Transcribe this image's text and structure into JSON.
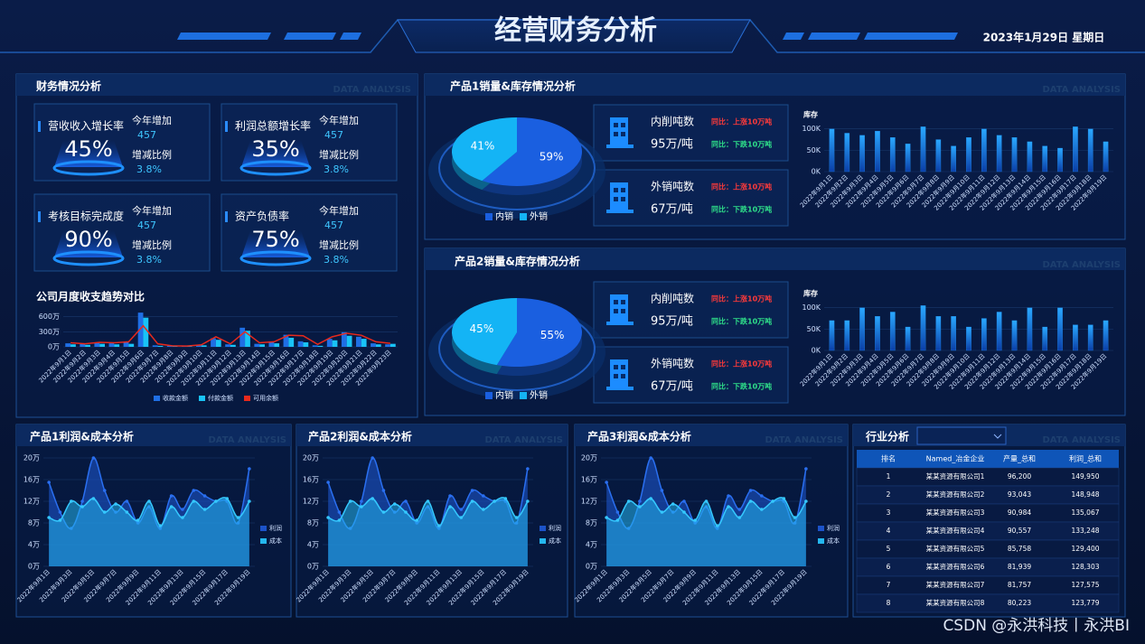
{
  "header": {
    "title": "经营财务分析",
    "date": "2023年1月29日 星期日"
  },
  "watermark": "CSDN @永洪科技丨永洪BI",
  "panel_tag": "DATA ANALYSIS",
  "finance": {
    "title": "财务情况分析"
  },
  "kpis": [
    {
      "label": "营收收入增长率",
      "value": "45%",
      "inc_label": "今年增加",
      "inc": "457",
      "ratio_label": "增减比例",
      "ratio": "3.8%"
    },
    {
      "label": "利润总额增长率",
      "value": "35%",
      "inc_label": "今年增加",
      "inc": "457",
      "ratio_label": "增减比例",
      "ratio": "3.8%"
    },
    {
      "label": "考核目标完成度",
      "value": "90%",
      "inc_label": "今年增加",
      "inc": "457",
      "ratio_label": "增减比例",
      "ratio": "3.8%"
    },
    {
      "label": "资产负债率",
      "value": "75%",
      "inc_label": "今年增加",
      "inc": "457",
      "ratio_label": "增减比例",
      "ratio": "3.8%"
    }
  ],
  "products": [
    {
      "title": "产品1销量&库存情况分析",
      "cards": [
        {
          "name": "内削吨数",
          "value": "95万/吨",
          "up": "同比：上涨10万吨",
          "down": "同比：下跌10万吨"
        },
        {
          "name": "外销吨数",
          "value": "67万/吨",
          "up": "同比：上涨10万吨",
          "down": "同比：下跌10万吨"
        }
      ]
    },
    {
      "title": "产品2销量&库存情况分析",
      "cards": [
        {
          "name": "内削吨数",
          "value": "95万/吨",
          "up": "同比：上涨10万吨",
          "down": "同比：下跌10万吨"
        },
        {
          "name": "外销吨数",
          "value": "67万/吨",
          "up": "同比：上涨10万吨",
          "down": "同比：下跌10万吨"
        }
      ]
    }
  ],
  "industry": {
    "title": "行业分析",
    "table": {
      "header": [
        "排名",
        "Named_冶金企业",
        "产量_总和",
        "利润_总和"
      ],
      "rows": [
        [
          "1",
          "某某资源有限公司1",
          "96,200",
          "149,950"
        ],
        [
          "2",
          "某某资源有限公司2",
          "93,043",
          "148,948"
        ],
        [
          "3",
          "某某资源有限公司3",
          "90,984",
          "135,067"
        ],
        [
          "4",
          "某某资源有限公司4",
          "90,557",
          "133,248"
        ],
        [
          "5",
          "某某资源有限公司5",
          "85,758",
          "129,400"
        ],
        [
          "6",
          "某某资源有限公司6",
          "81,939",
          "128,303"
        ],
        [
          "7",
          "某某资源有限公司7",
          "81,757",
          "127,575"
        ],
        [
          "8",
          "某某资源有限公司8",
          "80,223",
          "123,779"
        ]
      ]
    }
  },
  "chart_data": [
    {
      "type": "bar",
      "title": "公司月度收支趋势对比",
      "categories": [
        "2022年9月1日",
        "2022年9月2日",
        "2022年9月3日",
        "2022年9月4日",
        "2022年9月5日",
        "2022年9月6日",
        "2022年9月7日",
        "2022年9月8日",
        "2022年9月9日",
        "2022年9月10日",
        "2022年9月11日",
        "2022年9月12日",
        "2022年9月13日",
        "2022年9月14日",
        "2022年9月15日",
        "2022年9月16日",
        "2022年9月17日",
        "2022年9月18日",
        "2022年9月19日",
        "2022年9月20日",
        "2022年9月21日",
        "2022年9月22日",
        "2022年9月23日"
      ],
      "series": [
        {
          "name": "收款金额",
          "color": "#1f6fe5",
          "values": [
            70,
            60,
            80,
            70,
            90,
            680,
            30,
            20,
            10,
            40,
            170,
            50,
            380,
            60,
            90,
            240,
            110,
            30,
            160,
            290,
            200,
            70,
            50
          ]
        },
        {
          "name": "付款金额",
          "color": "#19c3f6",
          "values": [
            50,
            40,
            60,
            50,
            60,
            580,
            20,
            15,
            8,
            30,
            140,
            40,
            320,
            50,
            70,
            180,
            90,
            20,
            130,
            220,
            160,
            50,
            60
          ]
        },
        {
          "name": "可用余额",
          "color": "#e8291c",
          "type": "line",
          "values": [
            80,
            60,
            90,
            80,
            100,
            420,
            60,
            20,
            15,
            40,
            200,
            60,
            300,
            80,
            100,
            230,
            220,
            50,
            200,
            270,
            230,
            100,
            70
          ]
        }
      ],
      "ylim": [
        0,
        700
      ],
      "yticks": [
        {
          "value": 0,
          "label": "0万"
        },
        {
          "value": 300,
          "label": "300万"
        },
        {
          "value": 600,
          "label": "600万"
        }
      ],
      "grid": true
    },
    {
      "type": "pie",
      "categories": [
        "内销",
        "外销"
      ],
      "values": [
        59,
        41
      ],
      "value_labels": [
        "59%",
        "41%"
      ],
      "colors": [
        "#1a5fe0",
        "#14b4f5"
      ]
    },
    {
      "type": "bar",
      "ylabel": "库存",
      "color": "#1e8cf0",
      "categories": [
        "2022年9月1日",
        "2022年9月2日",
        "2022年9月3日",
        "2022年9月4日",
        "2022年9月5日",
        "2022年9月6日",
        "2022年9月7日",
        "2022年9月8日",
        "2022年9月9日",
        "2022年9月10日",
        "2022年9月11日",
        "2022年9月12日",
        "2022年9月13日",
        "2022年9月14日",
        "2022年9月15日",
        "2022年9月16日",
        "2022年9月17日",
        "2022年9月18日",
        "2022年9月19日"
      ],
      "values": [
        100,
        90,
        85,
        95,
        80,
        65,
        105,
        75,
        60,
        80,
        100,
        85,
        80,
        70,
        60,
        55,
        105,
        100,
        70
      ],
      "ylim": [
        0,
        110
      ],
      "yticks": [
        {
          "value": 0,
          "label": "0K"
        },
        {
          "value": 50,
          "label": "50K"
        },
        {
          "value": 100,
          "label": "100K"
        }
      ],
      "grid": true
    },
    {
      "type": "pie",
      "categories": [
        "内销",
        "外销"
      ],
      "values": [
        55,
        45
      ],
      "value_labels": [
        "55%",
        "45%"
      ],
      "colors": [
        "#1a5fe0",
        "#14b4f5"
      ]
    },
    {
      "type": "bar",
      "ylabel": "库存",
      "color": "#1e8cf0",
      "categories": [
        "2022年9月1日",
        "2022年9月2日",
        "2022年9月3日",
        "2022年9月4日",
        "2022年9月5日",
        "2022年9月6日",
        "2022年9月7日",
        "2022年9月8日",
        "2022年9月9日",
        "2022年9月10日",
        "2022年9月11日",
        "2022年9月12日",
        "2022年9月13日",
        "2022年9月14日",
        "2022年9月15日",
        "2022年9月16日",
        "2022年9月17日",
        "2022年9月18日",
        "2022年9月19日"
      ],
      "values": [
        70,
        70,
        100,
        80,
        90,
        55,
        105,
        80,
        80,
        55,
        75,
        90,
        70,
        100,
        55,
        100,
        60,
        60,
        70
      ],
      "ylim": [
        0,
        110
      ],
      "yticks": [
        {
          "value": 0,
          "label": "0K"
        },
        {
          "value": 50,
          "label": "50K"
        },
        {
          "value": 100,
          "label": "100K"
        }
      ],
      "grid": true
    },
    {
      "type": "area",
      "title": "产品1利润&成本分析",
      "categories": [
        "2022年9月1日",
        null,
        "2022年9月3日",
        null,
        "2022年9月5日",
        null,
        "2022年9月7日",
        null,
        "2022年9月9日",
        null,
        "2022年9月11日",
        null,
        "2022年9月13日",
        null,
        "2022年9月15日",
        null,
        "2022年9月17日",
        null,
        "2022年9月19日"
      ],
      "series": [
        {
          "name": "利润",
          "color": "#1c53c9",
          "values": [
            15.5,
            10,
            7,
            12,
            20,
            14,
            10,
            12,
            8,
            11,
            7,
            13,
            10.5,
            14,
            13,
            12,
            12,
            8,
            18
          ]
        },
        {
          "name": "成本",
          "color": "#24b7ef",
          "values": [
            9,
            8.5,
            12,
            11,
            12.5,
            10,
            11.5,
            10,
            8.5,
            12,
            7.5,
            11,
            9,
            12,
            10.5,
            12,
            12.5,
            9,
            12
          ]
        }
      ],
      "ylim": [
        0,
        20
      ],
      "yticks": [
        {
          "value": 0,
          "label": "0万"
        },
        {
          "value": 4,
          "label": "4万"
        },
        {
          "value": 8,
          "label": "8万"
        },
        {
          "value": 12,
          "label": "12万"
        },
        {
          "value": 16,
          "label": "16万"
        },
        {
          "value": 20,
          "label": "20万"
        }
      ],
      "grid": true
    },
    {
      "type": "area",
      "title": "产品2利润&成本分析",
      "categories": [
        "2022年9月1日",
        null,
        "2022年9月3日",
        null,
        "2022年9月5日",
        null,
        "2022年9月7日",
        null,
        "2022年9月9日",
        null,
        "2022年9月11日",
        null,
        "2022年9月13日",
        null,
        "2022年9月15日",
        null,
        "2022年9月17日",
        null,
        "2022年9月19日"
      ],
      "series": [
        {
          "name": "利润",
          "color": "#1c53c9",
          "values": [
            15.5,
            10,
            7,
            12,
            20,
            14,
            10,
            12,
            8,
            11,
            7,
            13,
            10.5,
            14,
            13,
            12,
            12,
            8,
            18
          ]
        },
        {
          "name": "成本",
          "color": "#24b7ef",
          "values": [
            9,
            8.5,
            12,
            11,
            12.5,
            10,
            11.5,
            10,
            8.5,
            12,
            7.5,
            11,
            9,
            12,
            10.5,
            12,
            12.5,
            9,
            12
          ]
        }
      ],
      "ylim": [
        0,
        20
      ],
      "yticks": [
        {
          "value": 0,
          "label": "0万"
        },
        {
          "value": 4,
          "label": "4万"
        },
        {
          "value": 8,
          "label": "8万"
        },
        {
          "value": 12,
          "label": "12万"
        },
        {
          "value": 16,
          "label": "16万"
        },
        {
          "value": 20,
          "label": "20万"
        }
      ],
      "grid": true
    },
    {
      "type": "area",
      "title": "产品3利润&成本分析",
      "categories": [
        "2022年9月1日",
        null,
        "2022年9月3日",
        null,
        "2022年9月5日",
        null,
        "2022年9月7日",
        null,
        "2022年9月9日",
        null,
        "2022年9月11日",
        null,
        "2022年9月13日",
        null,
        "2022年9月15日",
        null,
        "2022年9月17日",
        null,
        "2022年9月19日"
      ],
      "series": [
        {
          "name": "利润",
          "color": "#1c53c9",
          "values": [
            15.5,
            10,
            7,
            12,
            20,
            14,
            10,
            12,
            8,
            11,
            7,
            13,
            10.5,
            14,
            13,
            12,
            12,
            8,
            18
          ]
        },
        {
          "name": "成本",
          "color": "#24b7ef",
          "values": [
            9,
            8.5,
            12,
            11,
            12.5,
            10,
            11.5,
            10,
            8.5,
            12,
            7.5,
            11,
            9,
            12,
            10.5,
            12,
            12.5,
            9,
            12
          ]
        }
      ],
      "ylim": [
        0,
        20
      ],
      "yticks": [
        {
          "value": 0,
          "label": "0万"
        },
        {
          "value": 4,
          "label": "4万"
        },
        {
          "value": 8,
          "label": "8万"
        },
        {
          "value": 12,
          "label": "12万"
        },
        {
          "value": 16,
          "label": "16万"
        },
        {
          "value": 20,
          "label": "20万"
        }
      ],
      "grid": true
    }
  ]
}
